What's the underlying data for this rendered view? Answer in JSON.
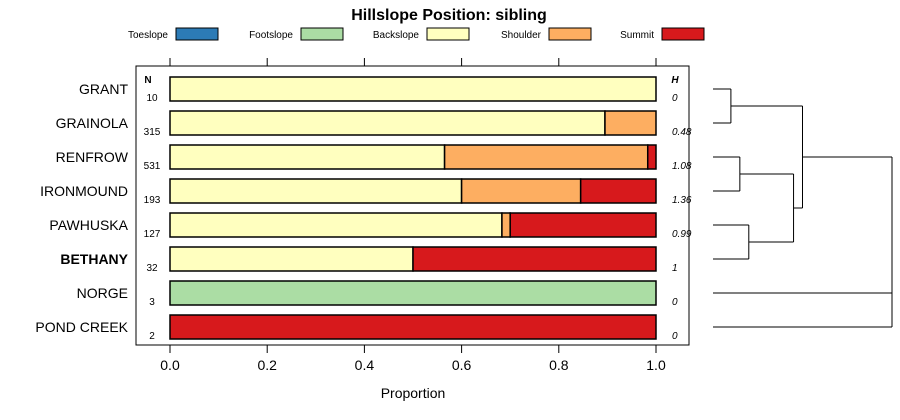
{
  "chart_data": {
    "type": "bar",
    "orientation": "horizontal",
    "stacked": true,
    "title": "Hillslope Position: sibling",
    "xlabel": "Proportion",
    "ylabel": "",
    "xlim": [
      0,
      1
    ],
    "x_ticks": [
      "0.0",
      "0.2",
      "0.4",
      "0.6",
      "0.8",
      "1.0"
    ],
    "n_header": "N",
    "h_header": "H",
    "legend_position": "top",
    "categories": [
      "GRANT",
      "GRAINOLA",
      "RENFROW",
      "IRONMOUND",
      "PAWHUSKA",
      "BETHANY",
      "NORGE",
      "POND CREEK"
    ],
    "highlighted_category": "BETHANY",
    "n": [
      "10",
      "315",
      "531",
      "193",
      "127",
      "32",
      "3",
      "2"
    ],
    "h": [
      "0",
      "0.48",
      "1.08",
      "1.36",
      "0.99",
      "1",
      "0",
      "0"
    ],
    "series": [
      {
        "name": "Toeslope",
        "color": "#2c7bb6",
        "values": [
          0,
          0,
          0,
          0,
          0,
          0,
          0,
          0
        ]
      },
      {
        "name": "Footslope",
        "color": "#abdda4",
        "values": [
          0,
          0,
          0,
          0,
          0,
          0,
          1,
          0
        ]
      },
      {
        "name": "Backslope",
        "color": "#ffffbf",
        "values": [
          1,
          0.895,
          0.565,
          0.6,
          0.683,
          0.5,
          0,
          0
        ]
      },
      {
        "name": "Shoulder",
        "color": "#fdae61",
        "values": [
          0,
          0.105,
          0.418,
          0.245,
          0.017,
          0,
          0,
          0
        ]
      },
      {
        "name": "Summit",
        "color": "#d7191c",
        "values": [
          0,
          0,
          0.017,
          0.155,
          0.3,
          0.5,
          0,
          1
        ]
      }
    ],
    "dendrogram": [
      {
        "leaves": [
          0,
          1
        ],
        "height": 0.1
      },
      {
        "leaves": [
          2,
          3
        ],
        "height": 0.15
      },
      {
        "leaves": [
          4,
          5
        ],
        "height": 0.2
      },
      {
        "leaves": [
          2,
          3,
          4,
          5
        ],
        "height": 0.45
      },
      {
        "leaves": [
          0,
          1,
          2,
          3,
          4,
          5
        ],
        "height": 0.5
      },
      {
        "leaves": [
          6,
          7
        ],
        "height": 1.0
      },
      {
        "leaves": [
          0,
          1,
          2,
          3,
          4,
          5,
          6,
          7
        ],
        "height": 1.0
      }
    ]
  }
}
